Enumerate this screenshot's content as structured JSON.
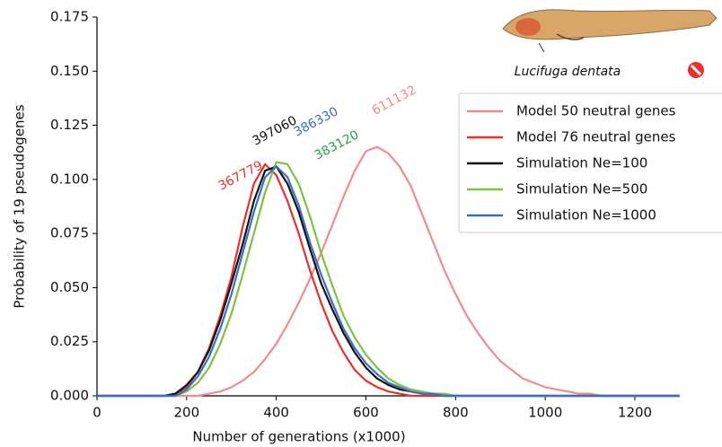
{
  "chart_data": {
    "type": "line",
    "x_label": "Number of generations (x1000)",
    "y_label": "Probability of 19 pseudogenes",
    "x": [
      0,
      25,
      50,
      75,
      100,
      125,
      150,
      175,
      200,
      225,
      250,
      275,
      300,
      325,
      350,
      375,
      400,
      425,
      450,
      475,
      500,
      525,
      550,
      575,
      600,
      625,
      650,
      675,
      700,
      725,
      750,
      775,
      800,
      825,
      850,
      875,
      900,
      925,
      950,
      975,
      1000,
      1025,
      1050,
      1075,
      1100,
      1125,
      1150,
      1175,
      1200,
      1225,
      1250,
      1275,
      1300
    ],
    "series": [
      {
        "name": "Model 50 neutral genes",
        "color": "#f28b8b",
        "values": [
          0,
          0,
          0,
          0,
          0,
          0,
          0,
          0,
          0,
          0,
          0.001,
          0.002,
          0.004,
          0.007,
          0.011,
          0.017,
          0.024,
          0.033,
          0.043,
          0.054,
          0.066,
          0.079,
          0.092,
          0.104,
          0.113,
          0.115,
          0.112,
          0.106,
          0.097,
          0.084,
          0.071,
          0.058,
          0.047,
          0.037,
          0.029,
          0.022,
          0.016,
          0.012,
          0.008,
          0.006,
          0.004,
          0.003,
          0.002,
          0.001,
          0.001,
          0,
          0,
          0,
          0,
          0,
          0,
          0,
          0
        ]
      },
      {
        "name": "Model 76 neutral genes",
        "color": "#e8312f",
        "values": [
          0,
          0,
          0,
          0,
          0,
          0,
          0,
          0.001,
          0.004,
          0.011,
          0.022,
          0.037,
          0.055,
          0.078,
          0.098,
          0.107,
          0.102,
          0.09,
          0.075,
          0.058,
          0.043,
          0.03,
          0.02,
          0.012,
          0.007,
          0.004,
          0.002,
          0.001,
          0,
          0,
          0,
          0,
          0,
          0,
          0,
          0,
          0,
          0,
          0,
          0,
          0,
          0,
          0,
          0,
          0,
          0,
          0,
          0,
          0,
          0,
          0,
          0,
          0
        ]
      },
      {
        "name": "Simulation Ne=100",
        "color": "#111111",
        "values": [
          0,
          0,
          0,
          0,
          0,
          0,
          0,
          0.001,
          0.005,
          0.011,
          0.021,
          0.035,
          0.052,
          0.07,
          0.09,
          0.104,
          0.106,
          0.098,
          0.085,
          0.068,
          0.052,
          0.04,
          0.029,
          0.02,
          0.013,
          0.008,
          0.005,
          0.003,
          0.002,
          0.001,
          0.001,
          0,
          0,
          0,
          0,
          0,
          0,
          0,
          0,
          0,
          0,
          0,
          0,
          0,
          0,
          0,
          0,
          0,
          0,
          0,
          0,
          0,
          0
        ]
      },
      {
        "name": "Simulation Ne=500",
        "color": "#7dc242",
        "values": [
          0,
          0,
          0,
          0,
          0,
          0,
          0,
          0,
          0.002,
          0.006,
          0.013,
          0.024,
          0.038,
          0.056,
          0.075,
          0.094,
          0.108,
          0.107,
          0.098,
          0.083,
          0.066,
          0.051,
          0.037,
          0.027,
          0.019,
          0.013,
          0.008,
          0.005,
          0.003,
          0.002,
          0.001,
          0.001,
          0,
          0,
          0,
          0,
          0,
          0,
          0,
          0,
          0,
          0,
          0,
          0,
          0,
          0,
          0,
          0,
          0,
          0,
          0,
          0,
          0
        ]
      },
      {
        "name": "Simulation Ne=1000",
        "color": "#3a6fc4",
        "values": [
          0,
          0,
          0,
          0,
          0,
          0,
          0,
          0,
          0.003,
          0.009,
          0.018,
          0.031,
          0.047,
          0.066,
          0.085,
          0.101,
          0.106,
          0.101,
          0.088,
          0.071,
          0.056,
          0.043,
          0.031,
          0.022,
          0.015,
          0.01,
          0.006,
          0.004,
          0.002,
          0.001,
          0.001,
          0,
          0,
          0,
          0,
          0,
          0,
          0,
          0,
          0,
          0,
          0,
          0,
          0,
          0,
          0,
          0,
          0,
          0,
          0,
          0,
          0,
          0
        ]
      }
    ],
    "xlim": [
      0,
      1300
    ],
    "xticks": [
      0,
      200,
      400,
      600,
      800,
      1000,
      1200
    ],
    "ylim": [
      0,
      0.175
    ],
    "yticks": [
      {
        "value": 0,
        "label": "0.000"
      },
      0.025,
      {
        "value": 0.05,
        "label": "0.050"
      },
      0.075,
      {
        "value": 0.1,
        "label": "0.100"
      },
      0.125,
      {
        "value": 0.15,
        "label": "0.150"
      },
      0.175
    ],
    "legend": "upper right",
    "annotations": [
      {
        "text": "367779",
        "color": "#e8312f"
      },
      {
        "text": "397060",
        "color": "#111111"
      },
      {
        "text": "386330",
        "color": "#3a6fc4"
      },
      {
        "text": "383120",
        "color": "#2e9a4e"
      },
      {
        "text": "611132",
        "color": "#f28b8b"
      }
    ],
    "image_caption": "Lucifuga dentata"
  }
}
